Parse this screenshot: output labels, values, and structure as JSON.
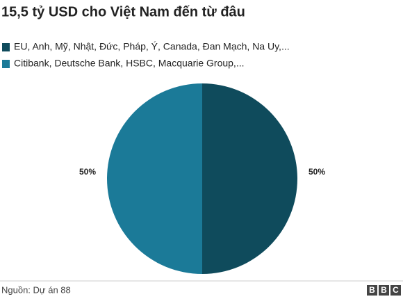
{
  "chart_data": {
    "type": "pie",
    "title": "15,5 tỷ USD cho Việt Nam đến từ đâu",
    "categories": [
      "EU, Anh, Mỹ, Nhật, Đức, Pháp, Ý, Canada, Đan Mạch, Na Uy,...",
      "Citibank, Deutsche Bank, HSBC, Macquarie Group,..."
    ],
    "values": [
      50,
      50
    ],
    "value_labels": [
      "50%",
      "50%"
    ],
    "colors": [
      "#0f4b5c",
      "#1b7a98"
    ]
  },
  "footer": {
    "source": "Nguồn: Dự án 88",
    "logo": [
      "B",
      "B",
      "C"
    ]
  }
}
